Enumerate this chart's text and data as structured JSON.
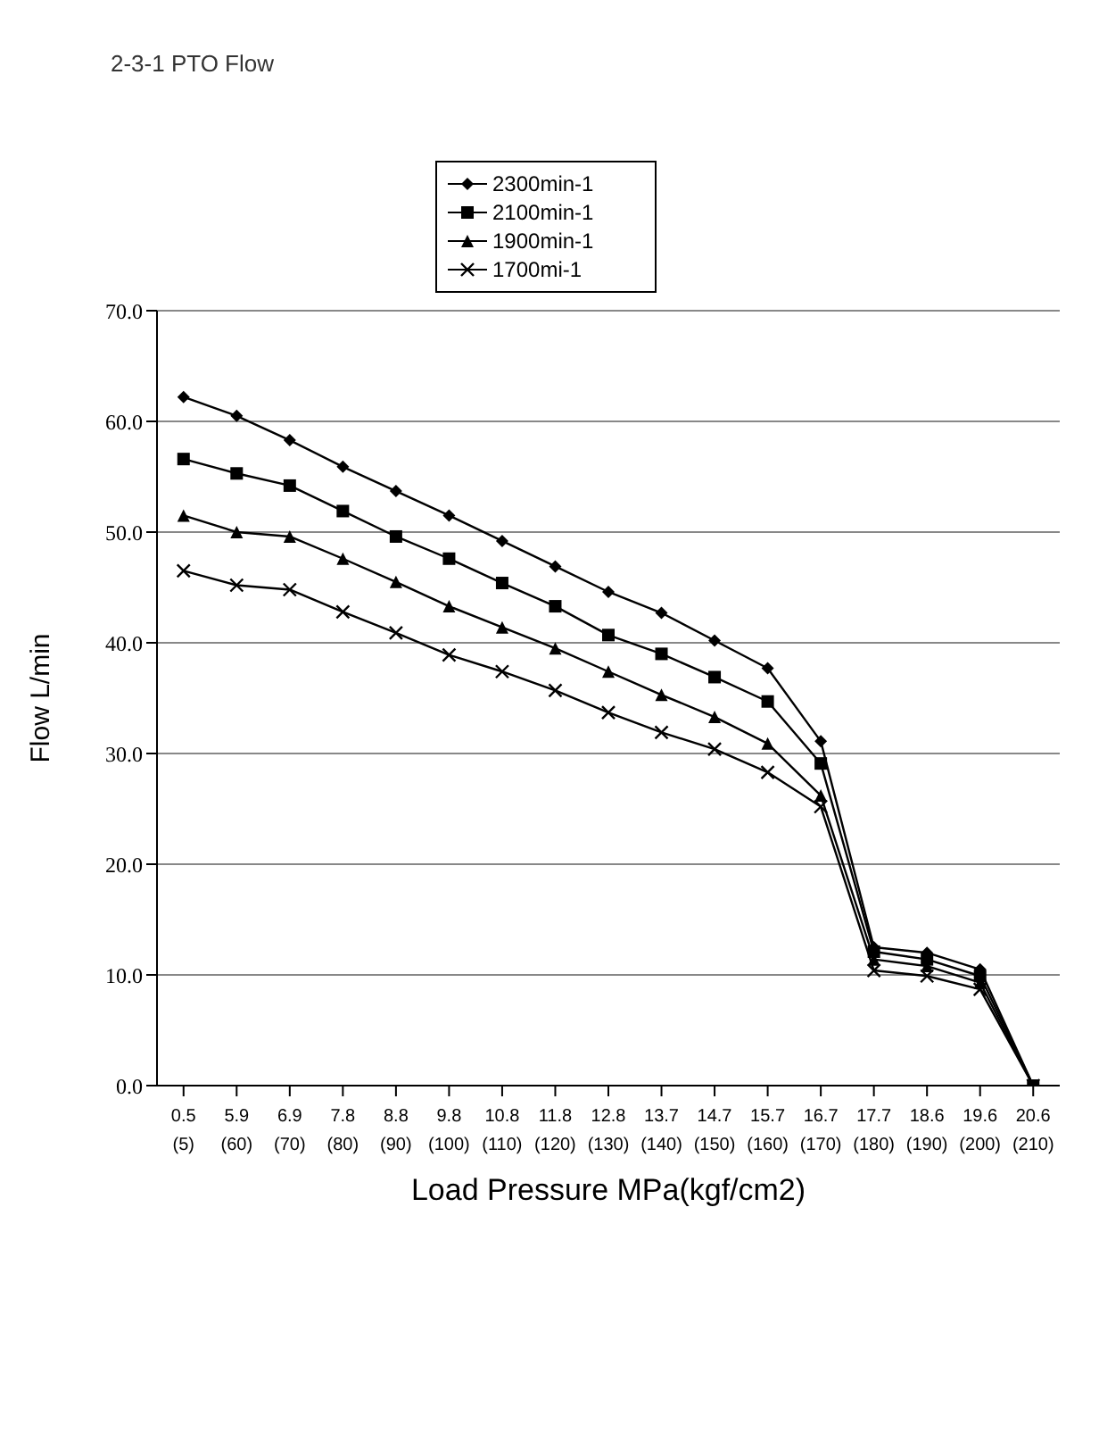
{
  "chart_data": {
    "type": "line",
    "title": "2-3-1 PTO Flow",
    "xlabel": "Load Pressure    MPa(kgf/cm2)",
    "ylabel": "Flow L/min",
    "categories": [
      "0.5\n(5)",
      "5.9\n(60)",
      "6.9\n(70)",
      "7.8\n(80)",
      "8.8\n(90)",
      "9.8\n(100)",
      "10.8\n(110)",
      "11.8\n(120)",
      "12.8\n(130)",
      "13.7\n(140)",
      "14.7\n(150)",
      "15.7\n(160)",
      "16.7\n(170)",
      "17.7\n(180)",
      "18.6\n(190)",
      "19.6\n(200)",
      "20.6\n(210)"
    ],
    "series": [
      {
        "name": "2300min-1",
        "color": "#000000",
        "marker": "diamond",
        "values": [
          62.2,
          60.5,
          58.3,
          55.9,
          53.7,
          51.5,
          49.2,
          46.9,
          44.6,
          42.7,
          40.2,
          37.7,
          31.1,
          12.5,
          12.0,
          10.5,
          0
        ]
      },
      {
        "name": "2100min-1",
        "color": "#000000",
        "marker": "square",
        "values": [
          56.6,
          55.3,
          54.2,
          51.9,
          49.6,
          47.6,
          45.4,
          43.3,
          40.7,
          39.0,
          36.9,
          34.7,
          29.1,
          12.1,
          11.4,
          9.9,
          0
        ]
      },
      {
        "name": "1900min-1",
        "color": "#000000",
        "marker": "triangle",
        "values": [
          51.5,
          50.0,
          49.6,
          47.6,
          45.5,
          43.3,
          41.4,
          39.5,
          37.4,
          35.3,
          33.3,
          30.9,
          26.2,
          11.4,
          10.8,
          9.3,
          0
        ]
      },
      {
        "name": "1700mi-1",
        "color": "#000000",
        "marker": "cross",
        "values": [
          46.5,
          45.2,
          44.8,
          42.8,
          40.9,
          38.9,
          37.4,
          35.7,
          33.7,
          31.9,
          30.4,
          28.3,
          25.2,
          10.4,
          9.9,
          8.7,
          0
        ]
      }
    ],
    "ylim": [
      0,
      70
    ],
    "yticks": [
      {
        "value": 0,
        "label": "0.0"
      },
      {
        "value": 10,
        "label": "10.0"
      },
      {
        "value": 20,
        "label": "20.0"
      },
      {
        "value": 30,
        "label": "30.0"
      },
      {
        "value": 40,
        "label": "40.0"
      },
      {
        "value": 50,
        "label": "50.0"
      },
      {
        "value": 60,
        "label": "60.0"
      },
      {
        "value": 70,
        "label": "70.0"
      }
    ],
    "grid": "y",
    "legend": "top",
    "line_style": "solid"
  }
}
